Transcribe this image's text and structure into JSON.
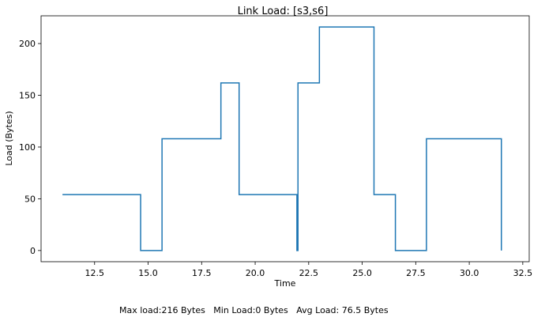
{
  "chart_data": {
    "type": "line",
    "drawstyle": "steps-post",
    "title": "Link Load: [s3,s6]",
    "xlabel": "Time",
    "ylabel": "Load (Bytes)",
    "xlim": [
      10.0,
      32.8
    ],
    "ylim": [
      -10.8,
      226.8
    ],
    "xticks": [
      12.5,
      15.0,
      17.5,
      20.0,
      22.5,
      25.0,
      27.5,
      30.0,
      32.5
    ],
    "xtick_labels": [
      "12.5",
      "15.0",
      "17.5",
      "20.0",
      "22.5",
      "25.0",
      "27.5",
      "30.0",
      "32.5"
    ],
    "yticks": [
      0,
      50,
      100,
      150,
      200
    ],
    "ytick_labels": [
      "0",
      "50",
      "100",
      "150",
      "200"
    ],
    "grid": false,
    "series": [
      {
        "color": "#1f77b4",
        "x": [
          11.0,
          14.65,
          15.65,
          18.4,
          19.25,
          21.95,
          22.0,
          23.0,
          25.55,
          26.55,
          28.0,
          31.5
        ],
        "y": [
          54,
          0,
          108,
          162,
          54,
          0,
          162,
          216,
          54,
          0,
          108,
          0
        ]
      }
    ],
    "footer": "Max load:216 Bytes   Min Load:0 Bytes   Avg Load: 76.5 Bytes"
  }
}
